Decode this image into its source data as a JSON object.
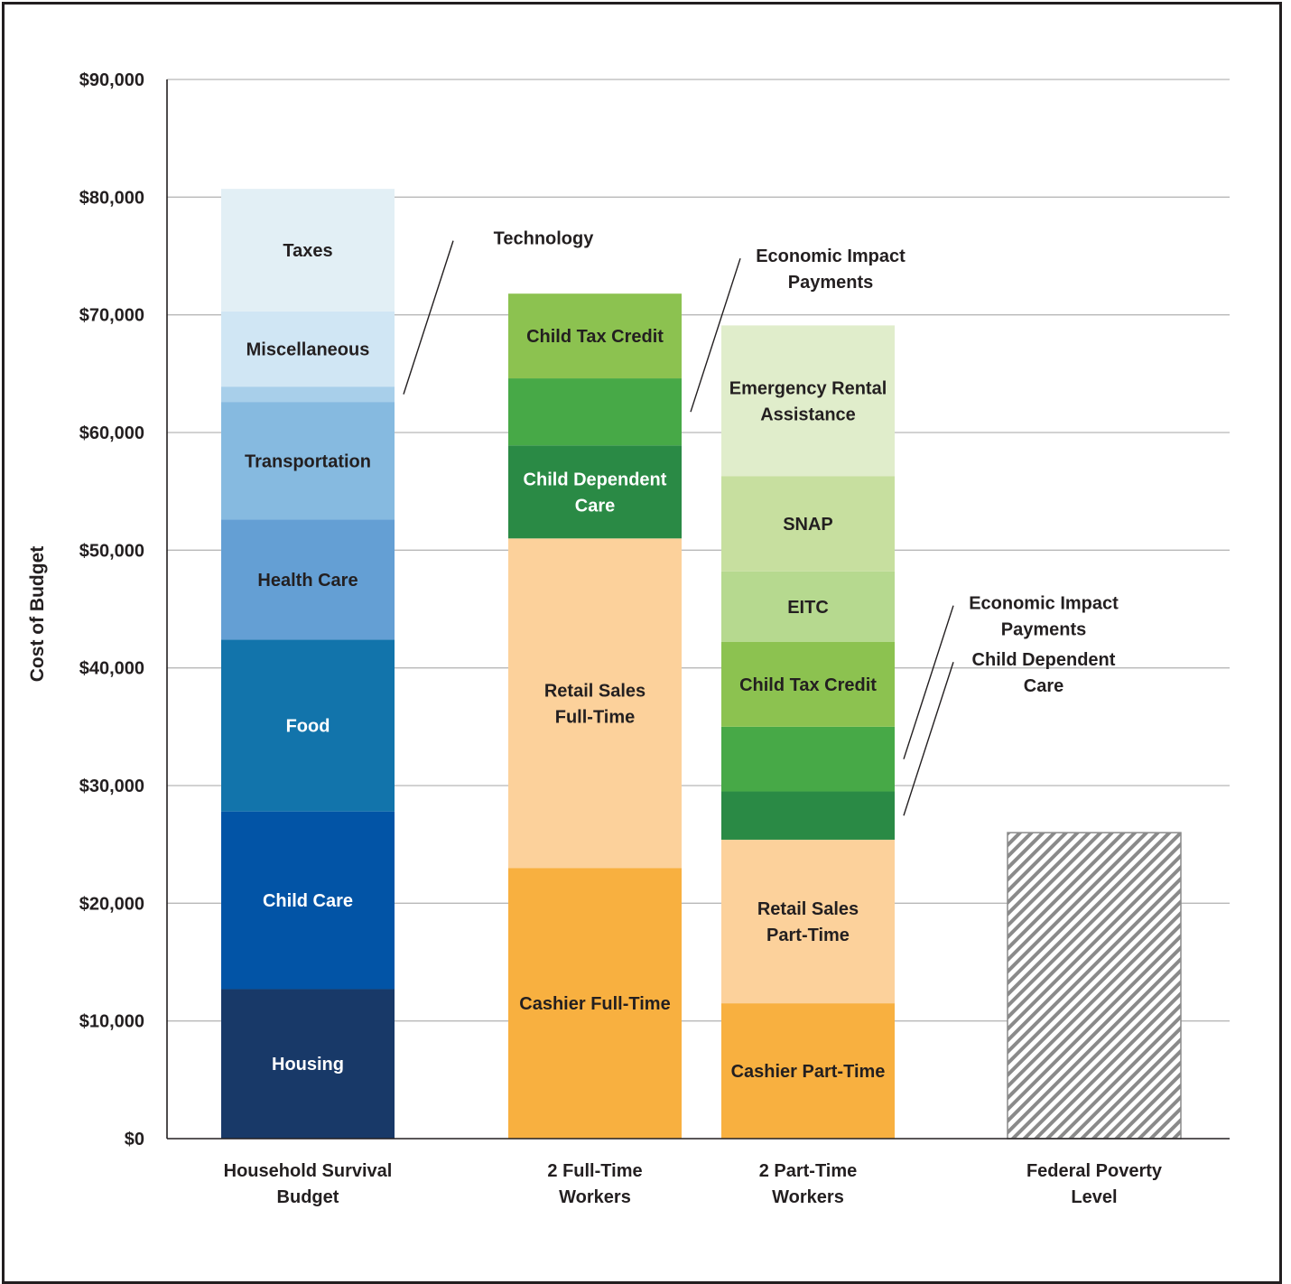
{
  "chart_data": {
    "type": "bar",
    "stacked": true,
    "ylabel": "Cost of Budget",
    "ylim": [
      0,
      90000
    ],
    "yticks": [
      "$0",
      "$10,000",
      "$20,000",
      "$30,000",
      "$40,000",
      "$50,000",
      "$60,000",
      "$70,000",
      "$80,000",
      "$90,000"
    ],
    "grid": true,
    "bars": [
      {
        "category": "Household Survival Budget",
        "segments": [
          {
            "name": "Housing",
            "value": 12700,
            "color": "#183968",
            "text_color": "#ffffff"
          },
          {
            "name": "Child Care",
            "value": 15100,
            "color": "#0254a6",
            "text_color": "#ffffff"
          },
          {
            "name": "Food",
            "value": 14600,
            "color": "#1274ab",
            "text_color": "#ffffff"
          },
          {
            "name": "Health Care",
            "value": 10200,
            "color": "#649fd4",
            "text_color": "#231f20"
          },
          {
            "name": "Transportation",
            "value": 10000,
            "color": "#86bae0",
            "text_color": "#231f20"
          },
          {
            "name": "Technology",
            "value": 1300,
            "color": "#a8cfea",
            "text_color": "#231f20",
            "callout": true
          },
          {
            "name": "Miscellaneous",
            "value": 6400,
            "color": "#d0e6f4",
            "text_color": "#231f20"
          },
          {
            "name": "Taxes",
            "value": 10400,
            "color": "#e2eff5",
            "text_color": "#231f20"
          }
        ]
      },
      {
        "category": "2 Full-Time Workers",
        "segments": [
          {
            "name": "Cashier Full-Time",
            "value": 23000,
            "color": "#f8b040",
            "text_color": "#231f20"
          },
          {
            "name": "Retail Sales Full-Time",
            "value": 28000,
            "color": "#fcd19b",
            "text_color": "#231f20"
          },
          {
            "name": "Child Dependent Care",
            "value": 7900,
            "color": "#2a8a45",
            "text_color": "#ffffff"
          },
          {
            "name": "Economic Impact Payments",
            "value": 5700,
            "color": "#47a947",
            "text_color": "#231f20",
            "callout": true
          },
          {
            "name": "Child Tax Credit",
            "value": 7200,
            "color": "#8cc250",
            "text_color": "#231f20"
          }
        ]
      },
      {
        "category": "2 Part-Time Workers",
        "segments": [
          {
            "name": "Cashier Part-Time",
            "value": 11500,
            "color": "#f8b040",
            "text_color": "#231f20"
          },
          {
            "name": "Retail Sales Part-Time",
            "value": 13900,
            "color": "#fcd19b",
            "text_color": "#231f20"
          },
          {
            "name": "Child Dependent Care",
            "value": 4100,
            "color": "#2a8a45",
            "text_color": "#231f20",
            "callout": true
          },
          {
            "name": "Economic Impact Payments",
            "value": 5500,
            "color": "#47a947",
            "text_color": "#231f20",
            "callout": true
          },
          {
            "name": "Child Tax Credit",
            "value": 7200,
            "color": "#8cc250",
            "text_color": "#231f20"
          },
          {
            "name": "EITC",
            "value": 6000,
            "color": "#b6d98f",
            "text_color": "#231f20"
          },
          {
            "name": "SNAP",
            "value": 8100,
            "color": "#c7df9f",
            "text_color": "#231f20"
          },
          {
            "name": "Emergency Rental Assistance",
            "value": 12800,
            "color": "#e0edcb",
            "text_color": "#231f20"
          }
        ]
      },
      {
        "category": "Federal Poverty Level",
        "segments": [
          {
            "name": "Federal Poverty Level",
            "value": 26000,
            "color": "#8a8a8a",
            "pattern": "hatch",
            "hide_label": true
          }
        ]
      }
    ],
    "callouts": [
      {
        "text": "Technology",
        "bar": 0,
        "segment": 5
      },
      {
        "text": "Economic Impact Payments",
        "bar": 1,
        "segment": 3
      },
      {
        "text": "Economic Impact Payments",
        "bar": 2,
        "segment": 3
      },
      {
        "text": "Child Dependent Care",
        "bar": 2,
        "segment": 2
      }
    ]
  }
}
